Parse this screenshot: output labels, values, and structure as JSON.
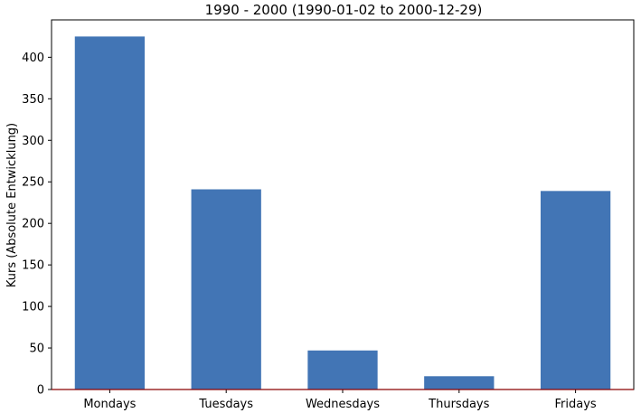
{
  "chart_data": {
    "type": "bar",
    "title": "1990 - 2000 (1990-01-02 to 2000-12-29)",
    "xlabel": "",
    "ylabel": "Kurs (Absolute Entwicklung)",
    "categories": [
      "Mondays",
      "Tuesdays",
      "Wednesdays",
      "Thursdays",
      "Fridays"
    ],
    "values": [
      425,
      241,
      47,
      16,
      239
    ],
    "ylim": [
      0,
      445
    ],
    "yticks": [
      0,
      50,
      100,
      150,
      200,
      250,
      300,
      350,
      400
    ],
    "grid": false,
    "legend": "none",
    "bar_color": "#4275b5",
    "zero_line_color": "#8b0000"
  }
}
